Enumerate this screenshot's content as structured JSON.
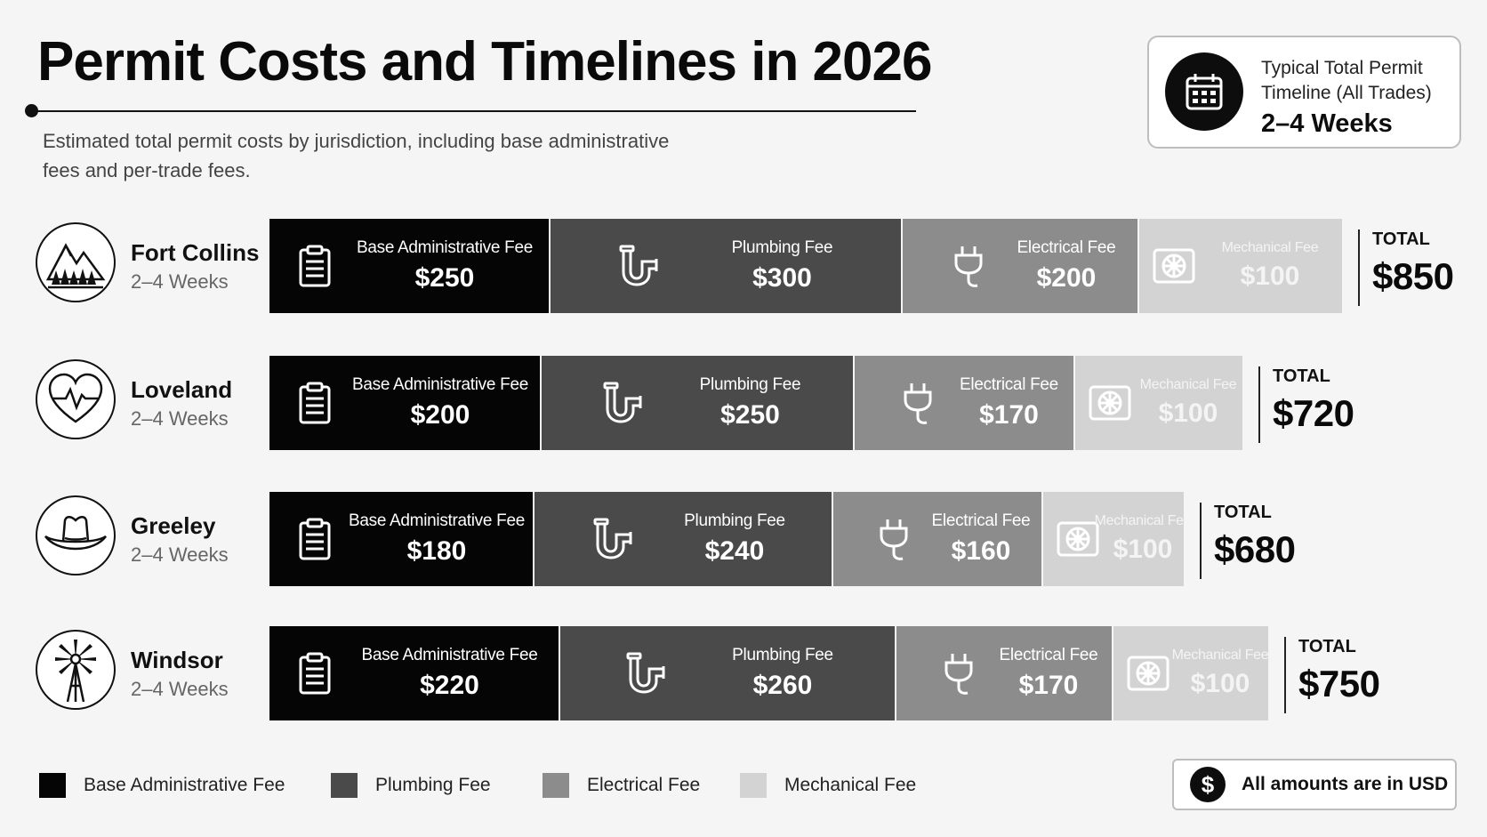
{
  "header": {
    "title": "Permit Costs and Timelines in 2026",
    "subtitle": "Estimated total permit costs by jurisdiction, including base administrative fees and per-trade fees."
  },
  "timeline_card": {
    "label": "Typical Total Permit Timeline (All Trades)",
    "value": "2–4 Weeks",
    "icon": "calendar-icon"
  },
  "colors": {
    "base": "#050505",
    "plumbing": "#4a4a4a",
    "electrical": "#8c8c8c",
    "mechanical": "#d3d3d3"
  },
  "total_label": "TOTAL",
  "chart_data": {
    "type": "bar",
    "orientation": "horizontal",
    "stacked": true,
    "unit": "USD",
    "categories": [
      "Fort Collins",
      "Loveland",
      "Greeley",
      "Windsor"
    ],
    "timelines": [
      "2–4 Weeks",
      "2–4 Weeks",
      "2–4 Weeks",
      "2–4 Weeks"
    ],
    "series": [
      {
        "name": "Base Administrative Fee",
        "key": "base",
        "values": [
          250,
          200,
          180,
          220
        ],
        "labels": [
          "$250",
          "$200",
          "$180",
          "$220"
        ]
      },
      {
        "name": "Plumbing Fee",
        "key": "plumb",
        "values": [
          300,
          250,
          240,
          260
        ],
        "labels": [
          "$300",
          "$250",
          "$240",
          "$260"
        ]
      },
      {
        "name": "Electrical Fee",
        "key": "elec",
        "values": [
          200,
          170,
          160,
          170
        ],
        "labels": [
          "$200",
          "$170",
          "$160",
          "$170"
        ]
      },
      {
        "name": "Mechanical Fee",
        "key": "mech",
        "values": [
          100,
          100,
          100,
          100
        ],
        "labels": [
          "$100",
          "$100",
          "$100",
          "$100"
        ]
      }
    ],
    "totals": [
      850,
      720,
      680,
      750
    ],
    "total_labels": [
      "$850",
      "$720",
      "$680",
      "$750"
    ],
    "city_icons": [
      "mountains-icon",
      "heart-pulse-icon",
      "cowboy-hat-icon",
      "windmill-icon"
    ],
    "legend_position": "bottom-left"
  },
  "legend": [
    {
      "label": "Base Administrative Fee",
      "color": "#050505"
    },
    {
      "label": "Plumbing Fee",
      "color": "#4a4a4a"
    },
    {
      "label": "Electrical Fee",
      "color": "#8c8c8c"
    },
    {
      "label": "Mechanical Fee",
      "color": "#d3d3d3"
    }
  ],
  "currency_note": {
    "label": "All amounts are in USD",
    "icon": "dollar-icon",
    "symbol": "$"
  }
}
